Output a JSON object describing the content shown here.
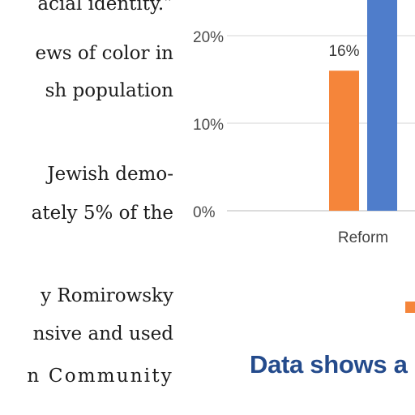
{
  "article": {
    "lines": [
      "acial identity.”",
      "ews of color in",
      "sh population",
      "Jewish demo-",
      "ately 5% of the",
      "y Romirowsky",
      "nsive and used",
      "n Community"
    ]
  },
  "chart_data": {
    "type": "bar",
    "categories": [
      "Reform"
    ],
    "series": [
      {
        "values": [
          16
        ],
        "color": "#f5853a"
      },
      {
        "values": [
          26
        ],
        "color": "#4f7dcb"
      }
    ],
    "data_labels": [
      "16%"
    ],
    "yticks": [
      "0%",
      "10%",
      "20%"
    ],
    "ylim": [
      0,
      26
    ],
    "grid": true,
    "legend_color": "#f5853a",
    "caption": "Data shows a",
    "caption_color": "#244b8c"
  }
}
